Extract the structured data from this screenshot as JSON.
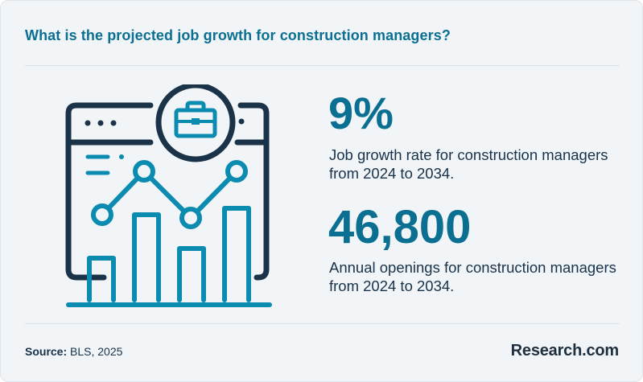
{
  "title": "What is the projected job growth for construction managers?",
  "stats": [
    {
      "value": "9%",
      "description": "Job growth rate for construction managers from 2024 to 2034."
    },
    {
      "value": "46,800",
      "description": "Annual openings for construction managers from 2024 to 2034."
    }
  ],
  "footer": {
    "source_label": "Source:",
    "source_text": "BLS, 2025",
    "brand": "Research.com"
  },
  "colors": {
    "accent": "#0b6f92",
    "navy": "#1b3348",
    "background": "#f2f5f8"
  },
  "illustration": {
    "icon": "growth-chart-with-briefcase-icon"
  }
}
